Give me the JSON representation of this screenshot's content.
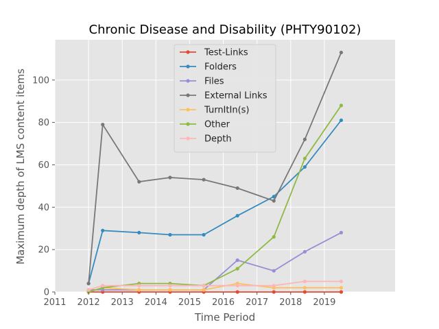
{
  "chart_data": {
    "type": "line",
    "title": "Chronic Disease and Disability (PHTY90102)",
    "xlabel": "Time Period",
    "ylabel": "Maximum depth of LMS content items",
    "xlim": [
      2011,
      2021.1
    ],
    "ylim": [
      0,
      119
    ],
    "xticks": [
      2011,
      2012,
      2013,
      2014,
      2015,
      2016,
      2017,
      2018,
      2019
    ],
    "yticks": [
      0,
      20,
      40,
      60,
      80,
      100
    ],
    "grid": true,
    "legend_position": "top-center",
    "x": [
      2012.0,
      2012.42,
      2013.5,
      2014.42,
      2015.42,
      2016.42,
      2017.5,
      2018.42,
      2019.5
    ],
    "series": [
      {
        "name": "Test-Links",
        "color": "#E24A33",
        "values": [
          0,
          0,
          0,
          0,
          0,
          0,
          0,
          0,
          0
        ]
      },
      {
        "name": "Folders",
        "color": "#348ABD",
        "values": [
          4,
          29,
          28,
          27,
          27,
          36,
          45,
          59,
          81
        ]
      },
      {
        "name": "Files",
        "color": "#988ED5",
        "values": [
          1,
          1,
          1,
          1,
          1,
          15,
          10,
          19,
          28
        ]
      },
      {
        "name": "External Links",
        "color": "#777777",
        "values": [
          4,
          79,
          52,
          54,
          53,
          49,
          43,
          72,
          113
        ]
      },
      {
        "name": "TurnItIn(s)",
        "color": "#FBC15E",
        "values": [
          0,
          2,
          1,
          1,
          1,
          4,
          2,
          2,
          2
        ]
      },
      {
        "name": "Other",
        "color": "#8EBA42",
        "values": [
          0,
          2,
          4,
          4,
          3,
          11,
          26,
          63,
          88
        ]
      },
      {
        "name": "Depth",
        "color": "#FFB5B8",
        "values": [
          1,
          3,
          3,
          3,
          3,
          3,
          3,
          5,
          5
        ]
      }
    ]
  }
}
